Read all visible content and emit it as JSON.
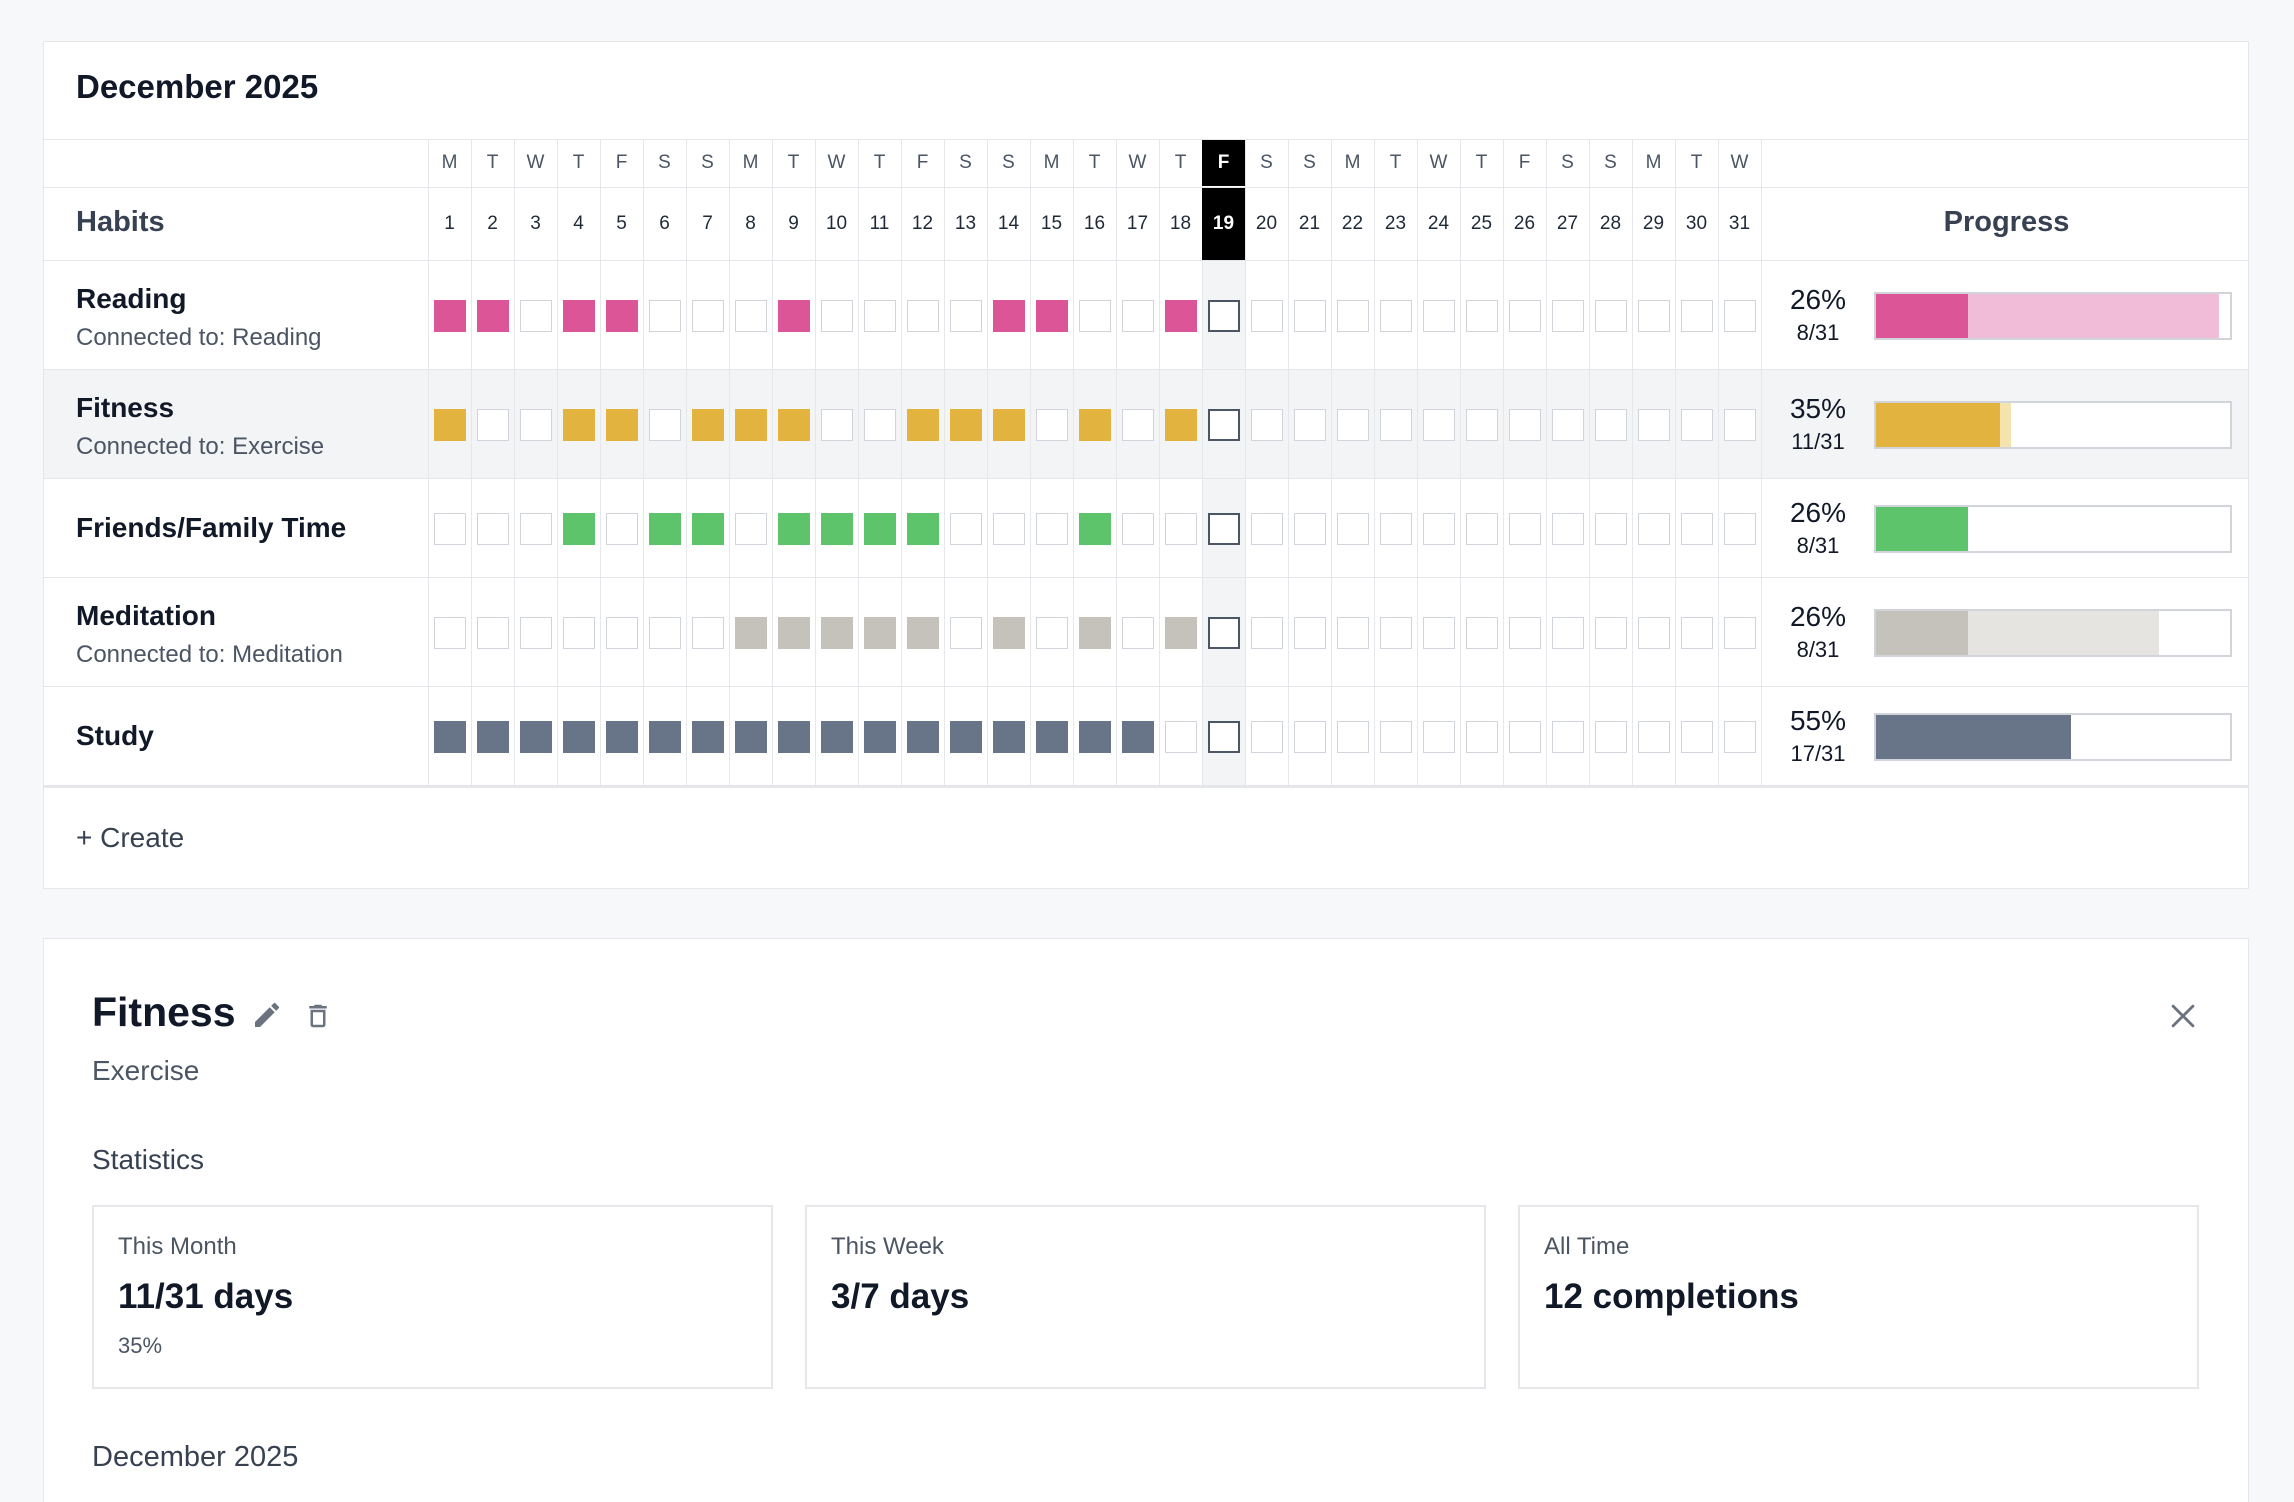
{
  "tracker": {
    "month_title": "December 2025",
    "habits_header": "Habits",
    "progress_header": "Progress",
    "create_label": "+ Create",
    "days_of_week": [
      "M",
      "T",
      "W",
      "T",
      "F",
      "S",
      "S",
      "M",
      "T",
      "W",
      "T",
      "F",
      "S",
      "S",
      "M",
      "T",
      "W",
      "T",
      "F",
      "S",
      "S",
      "M",
      "T",
      "W",
      "T",
      "F",
      "S",
      "S",
      "M",
      "T",
      "W"
    ],
    "day_numbers": [
      "1",
      "2",
      "3",
      "4",
      "5",
      "6",
      "7",
      "8",
      "9",
      "10",
      "11",
      "12",
      "13",
      "14",
      "15",
      "16",
      "17",
      "18",
      "19",
      "20",
      "21",
      "22",
      "23",
      "24",
      "25",
      "26",
      "27",
      "28",
      "29",
      "30",
      "31"
    ],
    "today_day": 19,
    "habits": [
      {
        "name": "Reading",
        "connected": "Connected to: Reading",
        "color": "#dc5597",
        "ghost_color": "#f0bcd7",
        "completed_days": [
          1,
          2,
          4,
          5,
          9,
          14,
          15,
          18
        ],
        "percent": "26%",
        "ratio": "8/31",
        "progress": 0.26,
        "ghost_progress": 0.97
      },
      {
        "name": "Fitness",
        "connected": "Connected to: Exercise",
        "color": "#e2b33f",
        "ghost_color": "#f5e3ae",
        "completed_days": [
          1,
          4,
          5,
          7,
          8,
          9,
          12,
          13,
          14,
          16,
          18
        ],
        "percent": "35%",
        "ratio": "11/31",
        "progress": 0.35,
        "ghost_progress": 0.38,
        "selected": true
      },
      {
        "name": "Friends/Family Time",
        "connected": "",
        "color": "#5ec46c",
        "ghost_color": "#d3f0d7",
        "completed_days": [
          4,
          6,
          7,
          9,
          10,
          11,
          12,
          16
        ],
        "percent": "26%",
        "ratio": "8/31",
        "progress": 0.26,
        "ghost_progress": 0.26
      },
      {
        "name": "Meditation",
        "connected": "Connected to: Meditation",
        "color": "#c5c1bb",
        "ghost_color": "#e6e4e1",
        "completed_days": [
          8,
          9,
          10,
          11,
          12,
          14,
          16,
          18
        ],
        "percent": "26%",
        "ratio": "8/31",
        "progress": 0.26,
        "ghost_progress": 0.8
      },
      {
        "name": "Study",
        "connected": "",
        "color": "#687487",
        "ghost_color": "#d9dde3",
        "completed_days": [
          1,
          2,
          3,
          4,
          5,
          6,
          7,
          8,
          9,
          10,
          11,
          12,
          13,
          14,
          15,
          16,
          17
        ],
        "percent": "55%",
        "ratio": "17/31",
        "progress": 0.55,
        "ghost_progress": 0.55
      }
    ]
  },
  "detail": {
    "title": "Fitness",
    "subtitle": "Exercise",
    "statistics_label": "Statistics",
    "cards": [
      {
        "label": "This Month",
        "value": "11/31 days",
        "extra": "35%"
      },
      {
        "label": "This Week",
        "value": "3/7 days",
        "extra": ""
      },
      {
        "label": "All Time",
        "value": "12 completions",
        "extra": ""
      }
    ],
    "month_label": "December 2025",
    "icons": {
      "edit": "pencil-icon",
      "delete": "trash-icon",
      "close": "close-icon"
    }
  }
}
